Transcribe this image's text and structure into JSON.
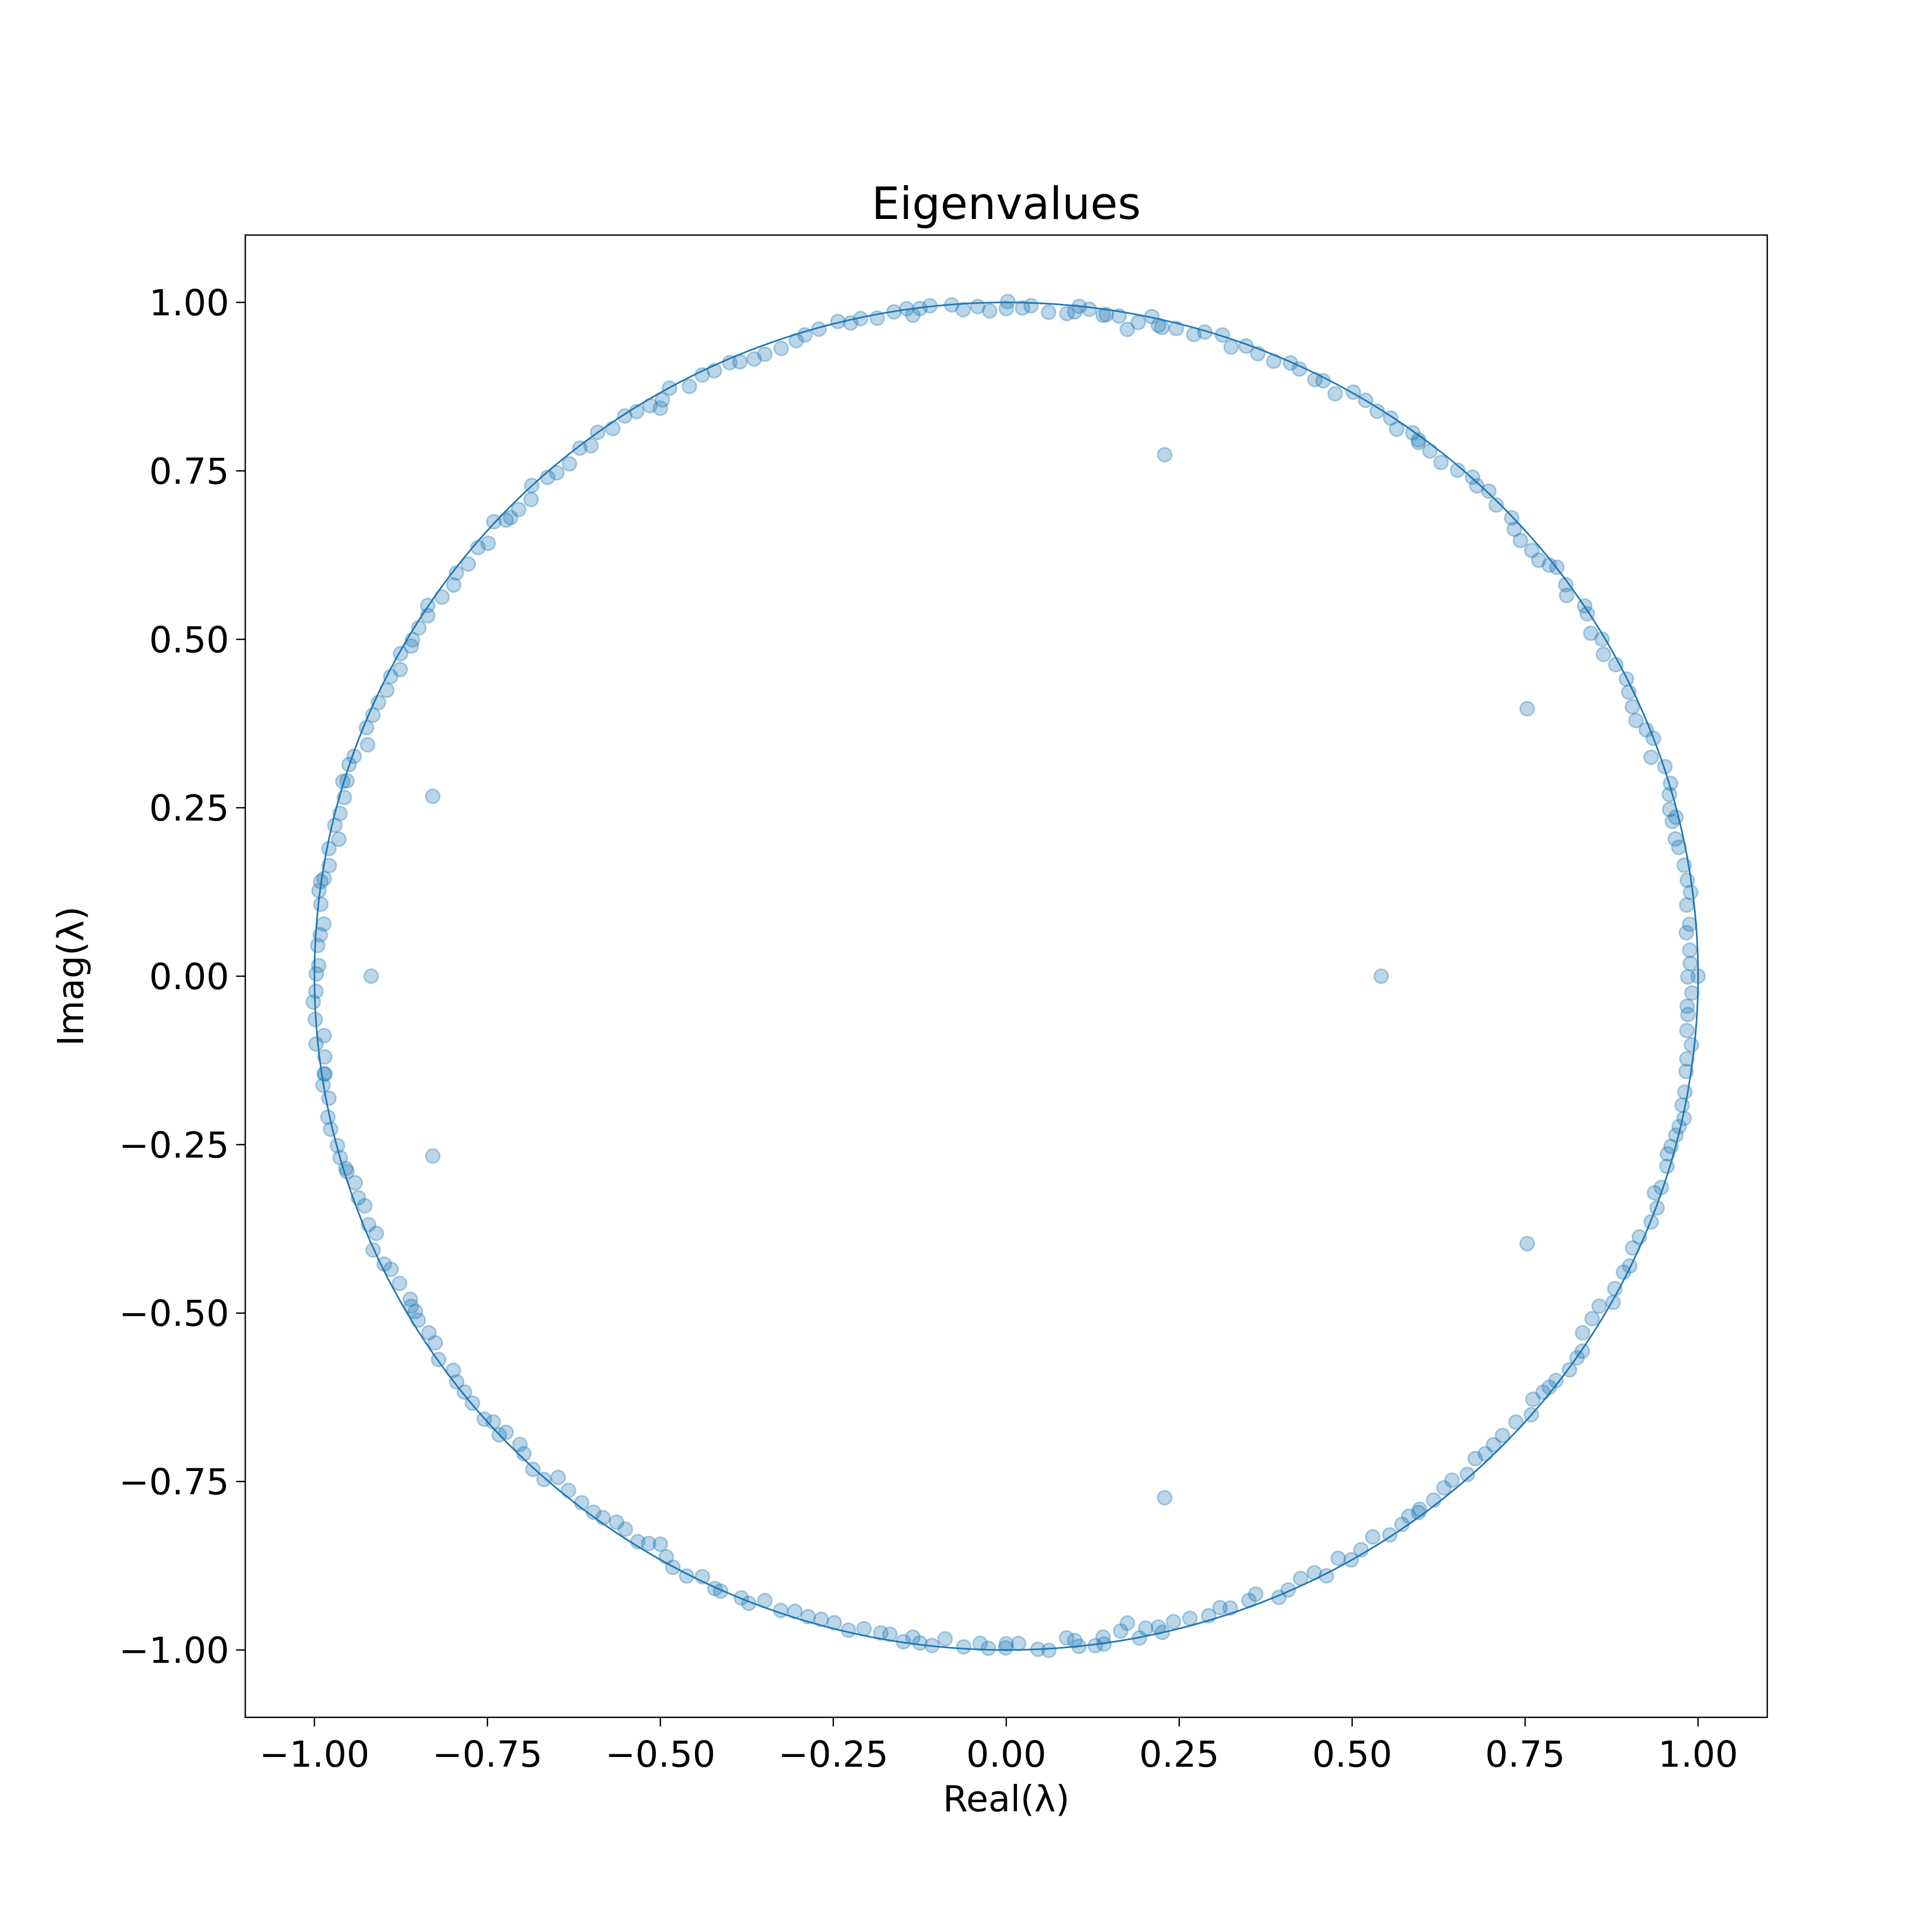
{
  "colors": {
    "series": "#1f77b4",
    "axes": "#000000",
    "background": "#ffffff"
  },
  "chart_data": {
    "type": "scatter",
    "title": "Eigenvalues",
    "xlabel": "Real(λ)",
    "ylabel": "Imag(λ)",
    "xlim": [
      -1.1,
      1.1
    ],
    "ylim": [
      -1.1,
      1.1
    ],
    "xticks": [
      -1.0,
      -0.75,
      -0.5,
      -0.25,
      0.0,
      0.25,
      0.5,
      0.75,
      1.0
    ],
    "yticks": [
      -1.0,
      -0.75,
      -0.5,
      -0.25,
      0.0,
      0.25,
      0.5,
      0.75,
      1.0
    ],
    "xtick_labels": [
      "−1.00",
      "−0.75",
      "−0.50",
      "−0.25",
      "0.00",
      "0.25",
      "0.50",
      "0.75",
      "1.00"
    ],
    "ytick_labels": [
      "−1.00",
      "−0.75",
      "−0.50",
      "−0.25",
      "0.00",
      "0.25",
      "0.50",
      "0.75",
      "1.00"
    ],
    "grid": false,
    "reference_curve": {
      "type": "unit_circle",
      "radius": 1.0,
      "center": [
        0,
        0
      ]
    },
    "marker_alpha": 0.3,
    "series": [
      {
        "points": [
          [
            1.0,
            0.0
          ],
          [
            0.542,
            0.0
          ],
          [
            -0.918,
            0.0
          ],
          [
            0.229,
            0.774
          ],
          [
            0.229,
            -0.774
          ],
          [
            0.753,
            0.397
          ],
          [
            0.753,
            -0.397
          ],
          [
            -0.829,
            0.267
          ],
          [
            -0.829,
            -0.267
          ],
          [
            0.175,
            0.96
          ],
          [
            0.175,
            -0.96
          ],
          [
            0.099,
            0.986
          ],
          [
            0.099,
            -0.986
          ],
          [
            0.0,
            0.991
          ],
          [
            0.0,
            -0.991
          ],
          [
            0.14,
            0.981
          ],
          [
            0.14,
            -0.981
          ],
          [
            0.22,
            0.966
          ],
          [
            0.22,
            -0.966
          ],
          [
            -0.135,
            0.981
          ],
          [
            -0.135,
            -0.981
          ],
          [
            0.596,
            0.796
          ],
          [
            0.596,
            -0.796
          ],
          [
            0.785,
            0.61
          ],
          [
            0.785,
            -0.61
          ],
          [
            0.968,
            0.236
          ],
          [
            0.968,
            -0.236
          ],
          [
            -0.5,
            0.843
          ],
          [
            -0.5,
            -0.843
          ],
          [
            -0.723,
            0.677
          ],
          [
            -0.723,
            -0.677
          ],
          [
            -0.86,
            0.49
          ],
          [
            -0.86,
            -0.49
          ],
          [
            -0.953,
            0.29
          ],
          [
            -0.953,
            -0.29
          ],
          [
            -0.986,
            0.145
          ],
          [
            -0.986,
            -0.145
          ]
        ],
        "unit_circle_ring": {
          "count": 300,
          "angle_jitter_deg": 0.35,
          "radius_min": 0.985,
          "radius_max": 1.003
        }
      }
    ]
  }
}
